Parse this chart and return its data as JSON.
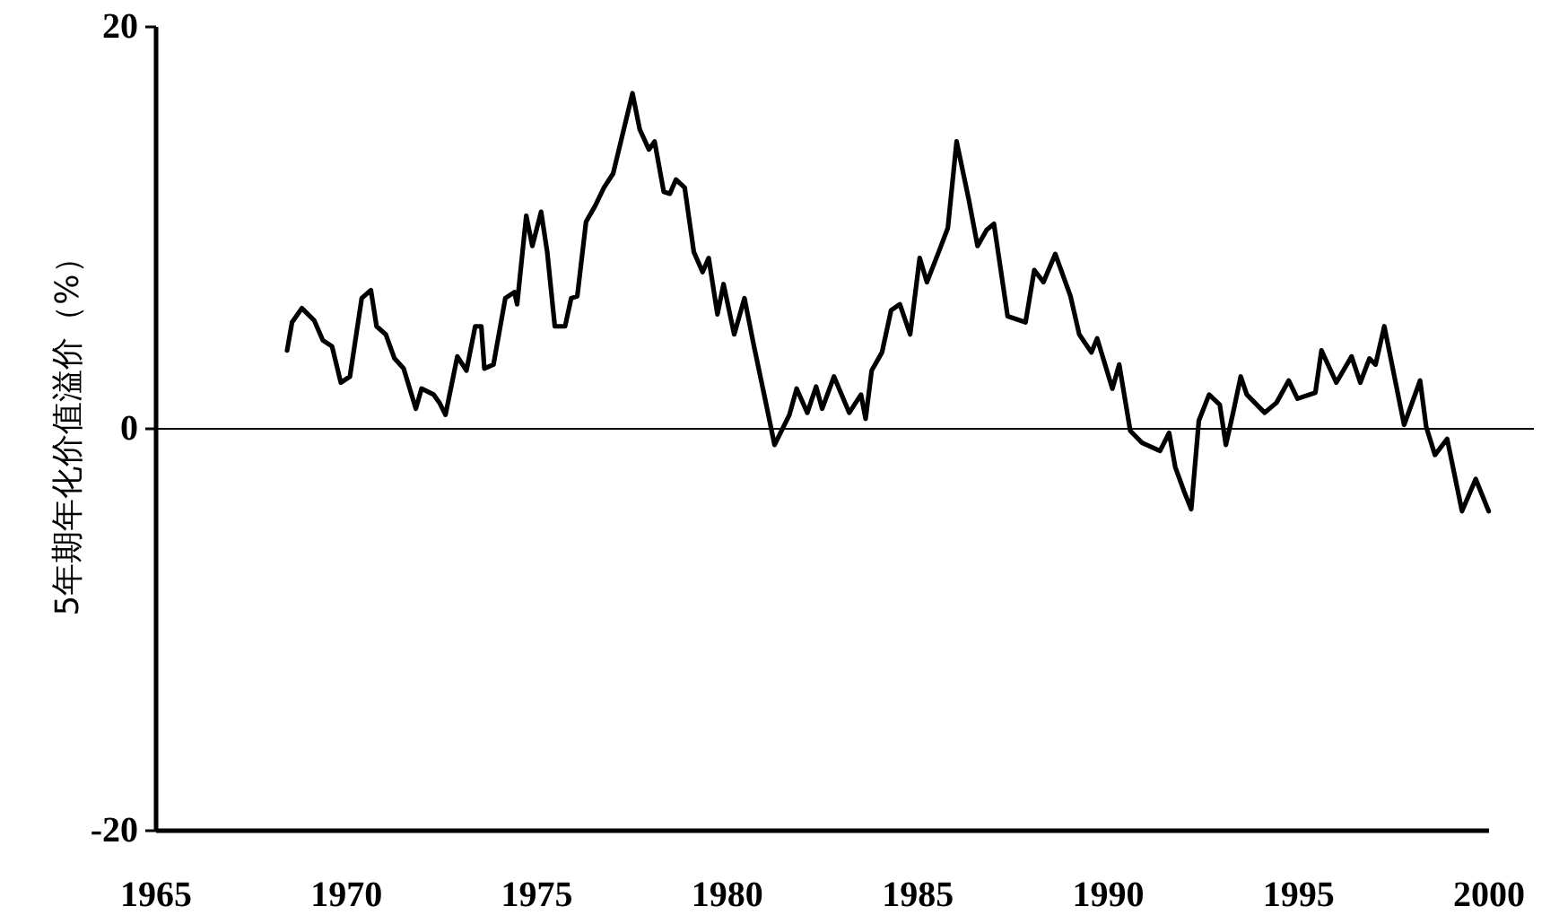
{
  "chart_data": {
    "type": "line",
    "ylabel": "5年期年化价值溢价（%）",
    "xlim": [
      1965,
      2000
    ],
    "xticks": [
      1965,
      1970,
      1975,
      1980,
      1985,
      1990,
      1995,
      2000
    ],
    "ylim": [
      -20,
      20
    ],
    "yticks": [
      -20,
      0,
      20
    ],
    "ref_lines": [
      {
        "axis": "y",
        "value": 0,
        "label": null,
        "color": "#000000"
      }
    ],
    "grid": false,
    "marker": "none",
    "line_style": "solid",
    "series": [
      {
        "color": "#000000",
        "x": [
          1968.44,
          1968.57,
          1968.83,
          1969.15,
          1969.38,
          1969.62,
          1969.85,
          1970.09,
          1970.4,
          1970.64,
          1970.79,
          1971.03,
          1971.26,
          1971.5,
          1971.82,
          1971.97,
          1972.29,
          1972.44,
          1972.6,
          1972.91,
          1973.15,
          1973.38,
          1973.54,
          1973.62,
          1973.86,
          1974.17,
          1974.41,
          1974.48,
          1974.72,
          1974.88,
          1975.11,
          1975.27,
          1975.47,
          1975.74,
          1975.9,
          1976.06,
          1976.29,
          1976.53,
          1976.76,
          1977.0,
          1977.23,
          1977.51,
          1977.7,
          1977.94,
          1978.09,
          1978.33,
          1978.49,
          1978.65,
          1978.88,
          1979.12,
          1979.35,
          1979.51,
          1979.74,
          1979.9,
          1980.18,
          1980.45,
          1980.69,
          1981.0,
          1981.24,
          1981.63,
          1981.82,
          1982.1,
          1982.33,
          1982.49,
          1982.8,
          1983.2,
          1983.51,
          1983.63,
          1983.79,
          1984.06,
          1984.3,
          1984.53,
          1984.8,
          1985.05,
          1985.24,
          1985.55,
          1985.79,
          1986.02,
          1986.34,
          1986.57,
          1986.81,
          1987.0,
          1987.36,
          1987.83,
          1988.06,
          1988.3,
          1988.61,
          1989.01,
          1989.24,
          1989.56,
          1989.71,
          1990.11,
          1990.29,
          1990.58,
          1990.89,
          1991.36,
          1991.6,
          1991.76,
          1991.99,
          1992.18,
          1992.38,
          1992.65,
          1992.93,
          1993.09,
          1993.28,
          1993.48,
          1993.64,
          1994.11,
          1994.42,
          1994.74,
          1994.97,
          1995.44,
          1995.6,
          1995.99,
          1996.39,
          1996.62,
          1996.86,
          1997.02,
          1997.25,
          1997.77,
          1998.19,
          1998.35,
          1998.58,
          1998.9,
          1999.29,
          1999.65,
          1999.99
        ],
        "values": [
          3.9,
          5.3,
          6.0,
          5.4,
          4.4,
          4.1,
          2.3,
          2.6,
          6.5,
          6.9,
          5.1,
          4.7,
          3.5,
          3.0,
          1.0,
          2.0,
          1.7,
          1.3,
          0.7,
          3.6,
          2.9,
          5.1,
          5.1,
          3.0,
          3.2,
          6.5,
          6.8,
          6.2,
          10.6,
          9.1,
          10.8,
          8.8,
          5.1,
          5.1,
          6.5,
          6.6,
          10.3,
          11.1,
          12.0,
          12.7,
          14.5,
          16.7,
          14.9,
          13.9,
          14.3,
          11.8,
          11.7,
          12.4,
          12.0,
          8.8,
          7.8,
          8.5,
          5.7,
          7.2,
          4.7,
          6.5,
          4.2,
          1.4,
          -0.8,
          0.7,
          2.0,
          0.8,
          2.1,
          1.0,
          2.6,
          0.8,
          1.7,
          0.5,
          2.9,
          3.8,
          5.9,
          6.2,
          4.7,
          8.5,
          7.3,
          8.8,
          10.0,
          14.3,
          11.4,
          9.1,
          9.9,
          10.2,
          5.6,
          5.3,
          7.9,
          7.3,
          8.7,
          6.6,
          4.7,
          3.8,
          4.5,
          2.0,
          3.2,
          -0.1,
          -0.7,
          -1.1,
          -0.2,
          -1.9,
          -3.1,
          -4.0,
          0.4,
          1.7,
          1.2,
          -0.8,
          0.8,
          2.6,
          1.7,
          0.8,
          1.3,
          2.4,
          1.5,
          1.8,
          3.9,
          2.3,
          3.6,
          2.3,
          3.5,
          3.2,
          5.1,
          0.2,
          2.4,
          0.1,
          -1.3,
          -0.5,
          -4.1,
          -2.5,
          -4.1
        ]
      }
    ]
  }
}
